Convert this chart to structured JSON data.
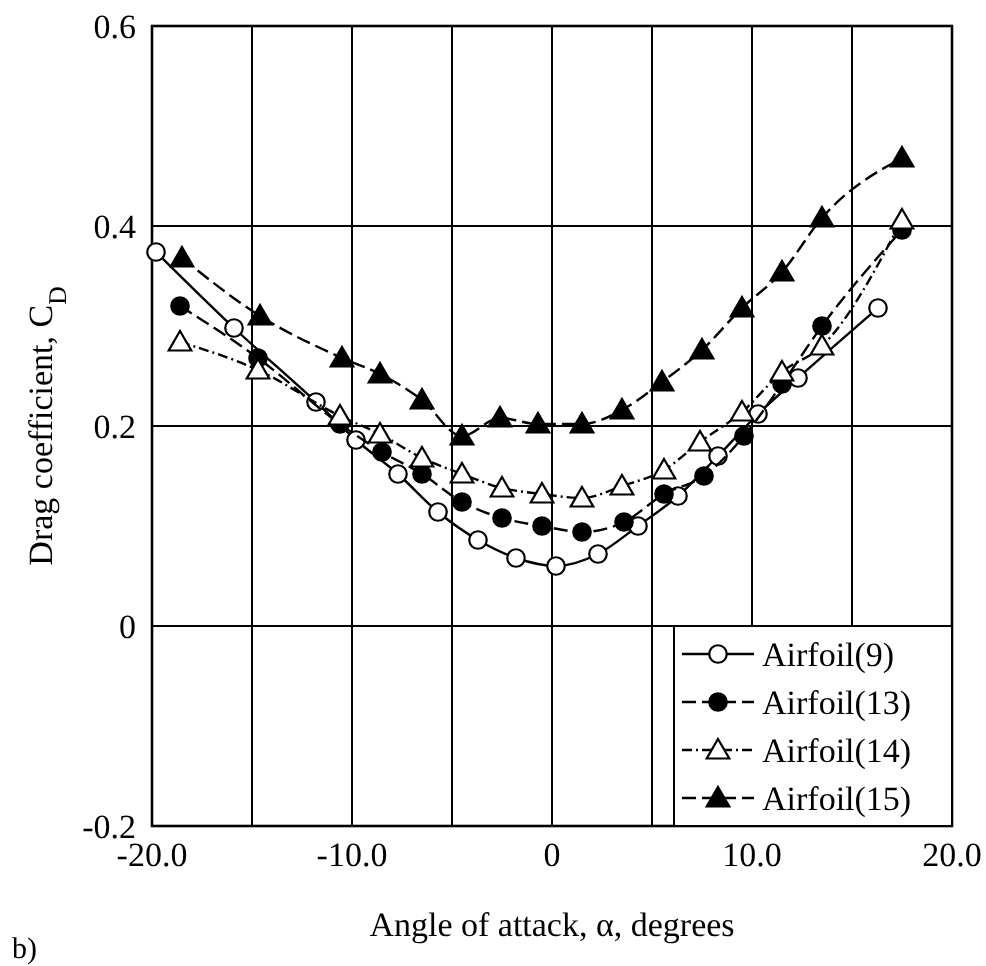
{
  "chart_data": {
    "type": "line",
    "xlabel": "Angle of attack,  α,  degrees",
    "ylabel": "Drag coefficient,  C$_{D}$",
    "annotations": [
      "b)"
    ],
    "xlim": [
      -20,
      20
    ],
    "ylim": [
      -0.2,
      0.6
    ],
    "xticks": [
      {
        "value": -20,
        "label": "-20.0"
      },
      {
        "value": -15,
        "label": null
      },
      {
        "value": -10,
        "label": "-10.0"
      },
      {
        "value": -5,
        "label": null
      },
      0,
      {
        "value": 5,
        "label": null
      },
      {
        "value": 10,
        "label": "10.0"
      },
      {
        "value": 15,
        "label": null
      },
      {
        "value": 20,
        "label": "20.0"
      }
    ],
    "yticks": [
      -0.2,
      0,
      0.2,
      0.4,
      0.6
    ],
    "grid": true,
    "legend": "bottom right",
    "series": [
      {
        "name": "Airfoil(9)",
        "color": "#000000",
        "marker": "circle",
        "line_style": "solid",
        "x": [
          -19.8,
          -15.9,
          -11.8,
          -9.8,
          -7.7,
          -5.7,
          -3.7,
          -1.8,
          0.2,
          2.3,
          4.3,
          6.3,
          8.3,
          10.3,
          12.3,
          16.3
        ],
        "values": [
          0.374,
          0.298,
          0.224,
          0.186,
          0.152,
          0.114,
          0.086,
          0.068,
          0.06,
          0.072,
          0.1,
          0.13,
          0.17,
          0.212,
          0.248,
          0.318
        ]
      },
      {
        "name": "Airfoil(13)",
        "color": "#000000",
        "marker": "circle",
        "line_style": "dashed",
        "x": [
          -18.6,
          -14.7,
          -10.6,
          -8.5,
          -6.5,
          -4.5,
          -2.5,
          -0.5,
          1.5,
          3.6,
          5.6,
          7.6,
          9.6,
          11.5,
          13.5,
          17.5
        ],
        "values": [
          0.32,
          0.268,
          0.202,
          0.174,
          0.152,
          0.124,
          0.108,
          0.1,
          0.094,
          0.104,
          0.132,
          0.15,
          0.19,
          0.242,
          0.3,
          0.396
        ]
      },
      {
        "name": "Airfoil(14)",
        "color": "#000000",
        "marker": "triangle",
        "line_style": "dotted",
        "x": [
          -18.6,
          -14.7,
          -10.6,
          -8.6,
          -6.5,
          -4.5,
          -2.5,
          -0.5,
          1.5,
          3.5,
          5.6,
          7.4,
          9.5,
          11.5,
          13.5,
          17.5
        ],
        "values": [
          0.284,
          0.256,
          0.21,
          0.192,
          0.168,
          0.152,
          0.138,
          0.132,
          0.128,
          0.14,
          0.156,
          0.184,
          0.214,
          0.254,
          0.28,
          0.406
        ]
      },
      {
        "name": "Airfoil(15)",
        "color": "#000000",
        "marker": "triangle",
        "line_style": "dashed",
        "x": [
          -18.5,
          -14.6,
          -10.5,
          -8.6,
          -6.5,
          -4.5,
          -2.6,
          -0.7,
          1.5,
          3.5,
          5.5,
          7.5,
          9.5,
          11.5,
          13.5,
          17.5
        ],
        "values": [
          0.368,
          0.31,
          0.268,
          0.252,
          0.226,
          0.19,
          0.208,
          0.202,
          0.202,
          0.216,
          0.244,
          0.276,
          0.318,
          0.354,
          0.408,
          0.468
        ]
      }
    ]
  }
}
